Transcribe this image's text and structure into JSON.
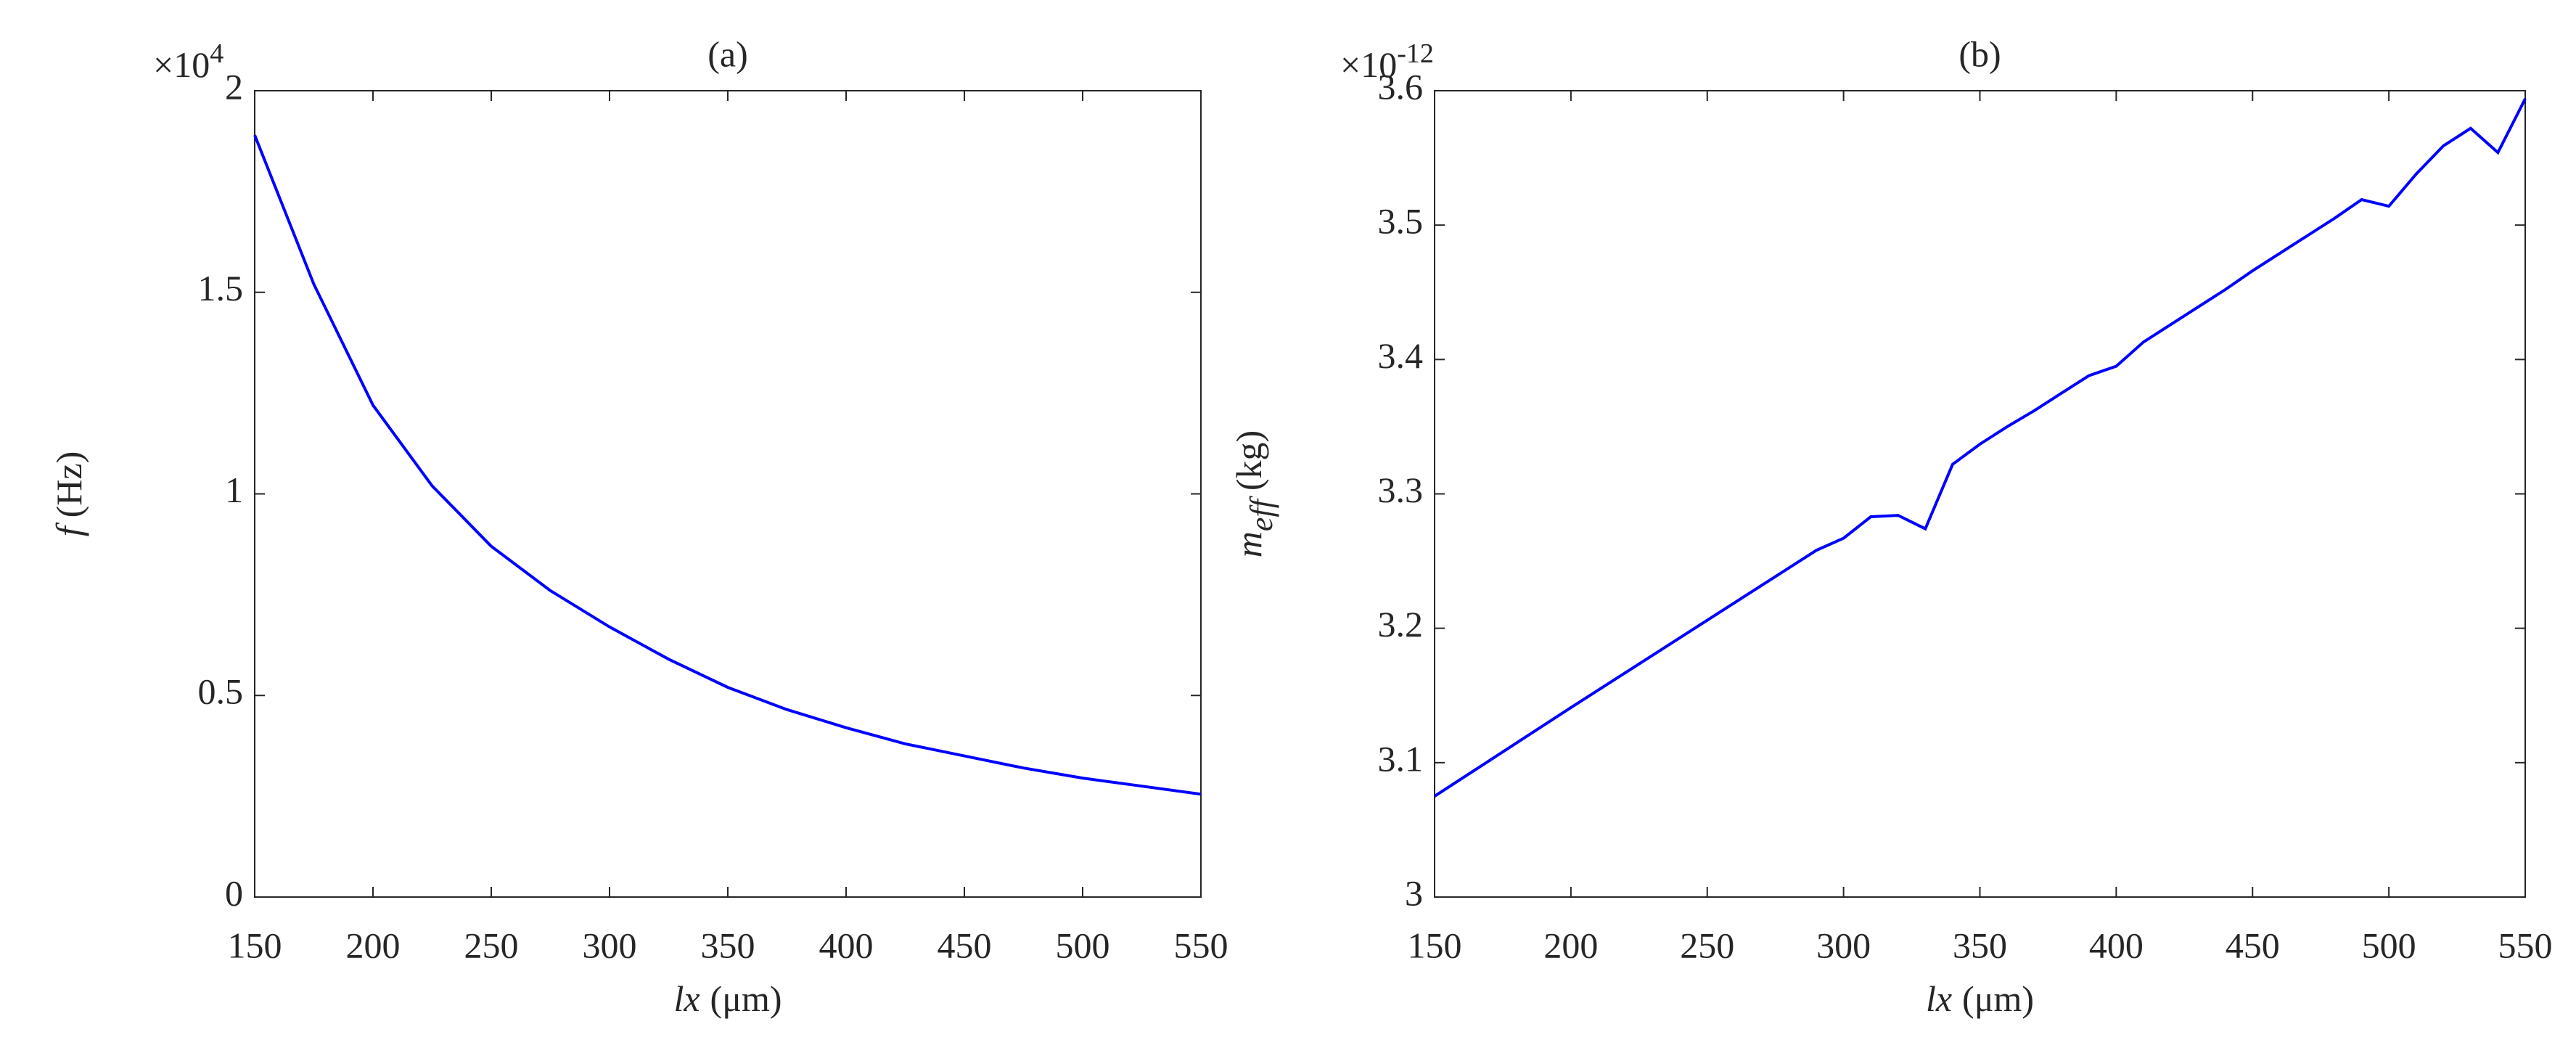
{
  "chart_data": [
    {
      "type": "line",
      "title": "(a)",
      "xlabel_var": "lx",
      "xlabel_unit": "(μm)",
      "ylabel_var": "f",
      "ylabel_unit": "(Hz)",
      "y_multiplier": "×10",
      "y_multiplier_exp": "4",
      "xlim": [
        150,
        550
      ],
      "xticks": [
        150,
        200,
        250,
        300,
        350,
        400,
        450,
        500,
        550
      ],
      "ylim": [
        0,
        20000
      ],
      "yticks": [
        0,
        {
          "value": 5000,
          "label": "0.5"
        },
        {
          "value": 10000,
          "label": "1"
        },
        {
          "value": 15000,
          "label": "1.5"
        },
        {
          "value": 20000,
          "label": "2"
        }
      ],
      "series": [
        {
          "color": "#0000ff",
          "x": [
            150,
            175,
            200,
            225,
            250,
            275,
            300,
            325,
            350,
            375,
            400,
            425,
            450,
            475,
            500,
            525,
            550
          ],
          "values": [
            18900,
            15200,
            12200,
            10200,
            8700,
            7600,
            6700,
            5900,
            5200,
            4650,
            4200,
            3800,
            3500,
            3200,
            2950,
            2750,
            2550
          ]
        }
      ]
    },
    {
      "type": "line",
      "title": "(b)",
      "xlabel_var": "lx",
      "xlabel_unit": "(μm)",
      "ylabel_var": "m",
      "ylabel_sub": "eff",
      "ylabel_unit": "(kg)",
      "y_multiplier": "×10",
      "y_multiplier_exp": "-12",
      "xlim": [
        150,
        550
      ],
      "xticks": [
        150,
        200,
        250,
        300,
        350,
        400,
        450,
        500,
        550
      ],
      "ylim": [
        3,
        3.6
      ],
      "yticks": [
        3,
        3.1,
        3.2,
        3.3,
        3.4,
        3.5,
        3.6
      ],
      "series": [
        {
          "color": "#0000ff",
          "x": [
            150,
            200,
            250,
            290,
            300,
            310,
            320,
            330,
            340,
            350,
            360,
            370,
            380,
            390,
            400,
            410,
            420,
            430,
            440,
            450,
            460,
            470,
            480,
            490,
            500,
            510,
            520,
            530,
            540,
            550
          ],
          "values": [
            3.075,
            3.141,
            3.206,
            3.258,
            3.267,
            3.283,
            3.284,
            3.274,
            3.322,
            3.337,
            3.35,
            3.362,
            3.375,
            3.388,
            3.395,
            3.413,
            3.426,
            3.439,
            3.452,
            3.466,
            3.479,
            3.492,
            3.505,
            3.519,
            3.514,
            3.538,
            3.559,
            3.572,
            3.554,
            3.594
          ]
        }
      ]
    }
  ]
}
